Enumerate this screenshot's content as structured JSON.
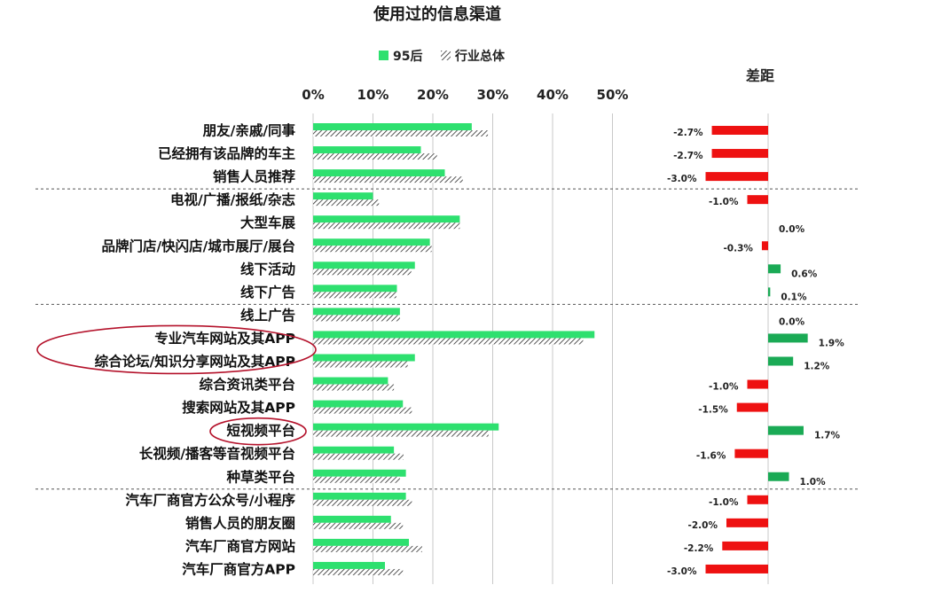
{
  "chart_data": {
    "type": "bar",
    "title": "使用过的信息渠道",
    "legend": [
      {
        "name": "95后",
        "color": "#2ee06f",
        "pattern": "solid"
      },
      {
        "name": "行业总体",
        "color": "#333333",
        "pattern": "hatch"
      }
    ],
    "xlim": [
      0,
      50
    ],
    "xticks": [
      "0%",
      "10%",
      "20%",
      "30%",
      "40%",
      "50%"
    ],
    "grid": true,
    "categories": [
      "朋友/亲戚/同事",
      "已经拥有该品牌的车主",
      "销售人员推荐",
      "电视/广播/报纸/杂志",
      "大型车展",
      "品牌门店/快闪店/城市展厅/展台",
      "线下活动",
      "线下广告",
      "线上广告",
      "专业汽车网站及其APP",
      "综合论坛/知识分享网站及其APP",
      "综合资讯类平台",
      "搜索网站及其APP",
      "短视频平台",
      "长视频/播客等音视频平台",
      "种草类平台",
      "汽车厂商官方公众号/小程序",
      "销售人员的朋友圈",
      "汽车厂商官方网站",
      "汽车厂商官方APP"
    ],
    "series": [
      {
        "name": "95后",
        "values": [
          26.5,
          18,
          22,
          10,
          24.5,
          19.5,
          17,
          14,
          14.5,
          47,
          17,
          12.5,
          15,
          31,
          13.5,
          15.5,
          15.5,
          13,
          16,
          12
        ]
      },
      {
        "name": "行业总体",
        "values": [
          29.2,
          20.7,
          25,
          11,
          24.5,
          19.8,
          16.4,
          13.9,
          14.5,
          45.1,
          15.8,
          13.5,
          16.5,
          29.3,
          15.1,
          14.5,
          16.5,
          15,
          18.2,
          15
        ]
      }
    ],
    "diff": {
      "title": "差距",
      "values": [
        -2.7,
        -2.7,
        -3.0,
        -1.0,
        0.0,
        -0.3,
        0.6,
        0.1,
        0.0,
        1.9,
        1.2,
        -1.0,
        -1.5,
        1.7,
        -1.6,
        1.0,
        -1.0,
        -2.0,
        -2.2,
        -3.0
      ],
      "labels": [
        "-2.7%",
        "-2.7%",
        "-3.0%",
        "-1.0%",
        "0.0%",
        "-0.3%",
        "0.6%",
        "0.1%",
        "0.0%",
        "1.9%",
        "1.2%",
        "-1.0%",
        "-1.5%",
        "1.7%",
        "-1.6%",
        "1.0%",
        "-1.0%",
        "-2.0%",
        "-2.2%",
        "-3.0%"
      ],
      "positive_color": "#1aaa55",
      "negative_color": "#ee1111"
    },
    "highlighted": [
      "专业汽车网站及其APP",
      "综合论坛/知识分享网站及其APP",
      "短视频平台"
    ],
    "group_dividers_after": [
      "销售人员推荐",
      "线下广告",
      "种草类平台"
    ]
  }
}
